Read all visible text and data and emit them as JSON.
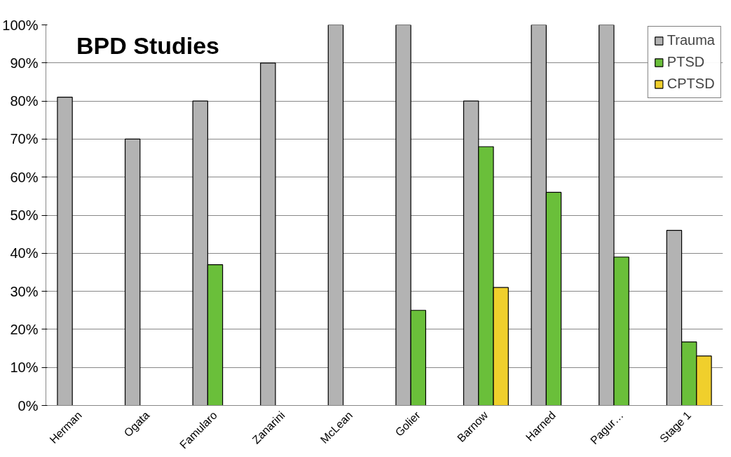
{
  "chart_data": {
    "type": "bar",
    "title": "BPD Studies",
    "categories": [
      "Herman",
      "Ogata",
      "Famularo",
      "Zanarini",
      "McLean",
      "Golier",
      "Barnow",
      "Harned",
      "Pagur…",
      "Stage 1"
    ],
    "series": [
      {
        "name": "Trauma",
        "color": "#b3b3b3",
        "values": [
          81,
          70,
          80,
          90,
          100,
          100,
          80,
          100,
          100,
          46
        ]
      },
      {
        "name": "PTSD",
        "color": "#6abf3a",
        "values": [
          null,
          null,
          37,
          null,
          null,
          25,
          68,
          56,
          39,
          16.7
        ]
      },
      {
        "name": "CPTSD",
        "color": "#f0cf2c",
        "values": [
          null,
          null,
          null,
          null,
          null,
          null,
          31,
          null,
          null,
          13
        ]
      }
    ],
    "ylim": [
      0,
      100
    ],
    "yticks": [
      {
        "value": 0,
        "label": "0%"
      },
      {
        "value": 10,
        "label": "10%"
      },
      {
        "value": 20,
        "label": "20%"
      },
      {
        "value": 30,
        "label": "30%"
      },
      {
        "value": 40,
        "label": "40%"
      },
      {
        "value": 50,
        "label": "50%"
      },
      {
        "value": 60,
        "label": "60%"
      },
      {
        "value": 70,
        "label": "70%"
      },
      {
        "value": 80,
        "label": "80%"
      },
      {
        "value": 90,
        "label": "90%"
      },
      {
        "value": 100,
        "label": "100%"
      }
    ],
    "grid": "y",
    "legend": "top right"
  }
}
